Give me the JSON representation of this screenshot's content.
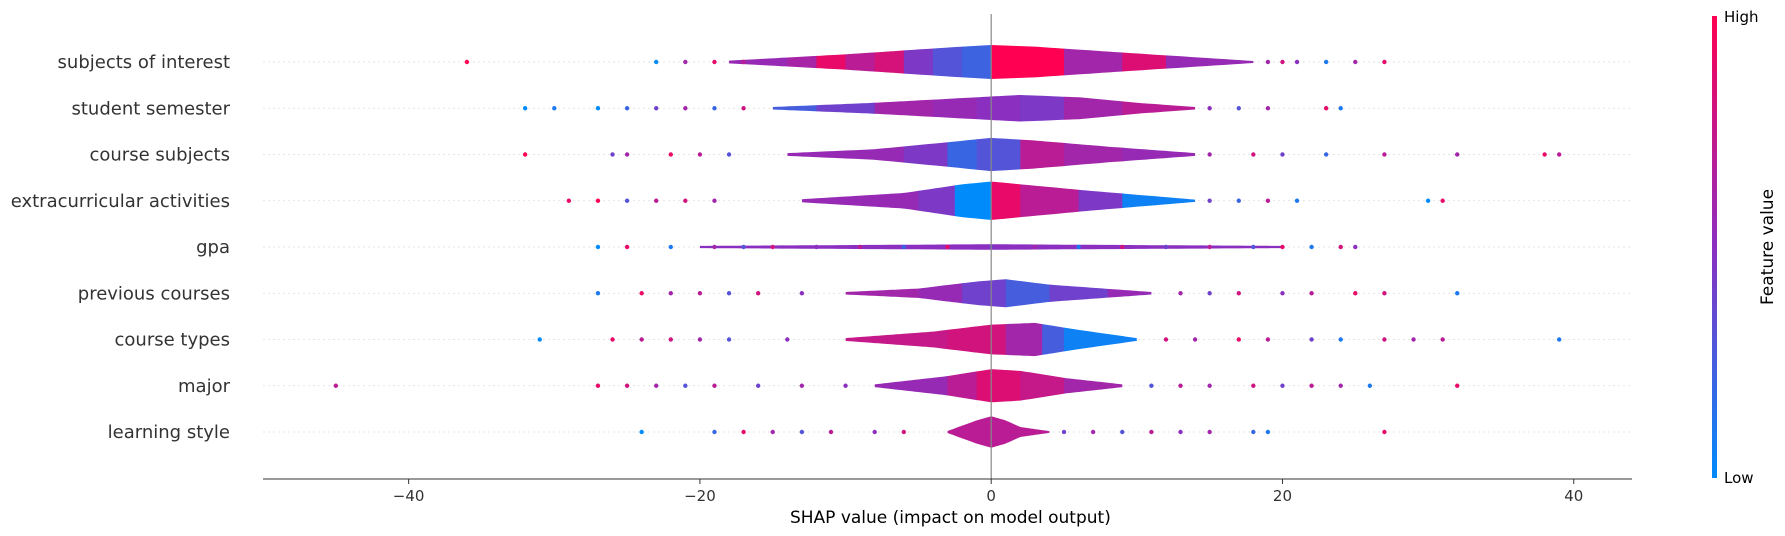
{
  "chart_data": {
    "type": "violin",
    "xlabel": "SHAP value (impact on model output)",
    "xlim": [
      -50,
      44
    ],
    "xticks": [
      -40,
      -20,
      0,
      20,
      40
    ],
    "xtick_labels": [
      "−40",
      "−20",
      "0",
      "20",
      "40"
    ],
    "colorbar": {
      "title": "Feature value",
      "high_label": "High",
      "low_label": "Low",
      "high_color": "#ff0052",
      "mid_color": "#8b2fc0",
      "low_color": "#008bfb"
    },
    "features": [
      {
        "name": "subjects of interest",
        "range": [
          -18,
          18
        ],
        "max_width": 0.37,
        "profile": [
          [
            -18,
            0.08
          ],
          [
            -10,
            0.45
          ],
          [
            -3,
            0.85
          ],
          [
            0,
            1
          ],
          [
            3,
            0.9
          ],
          [
            10,
            0.5
          ],
          [
            18,
            0.06
          ]
        ],
        "bands": [
          [
            -18,
            0.55
          ],
          [
            -14,
            0.62
          ],
          [
            -12,
            0.9
          ],
          [
            -10,
            0.7
          ],
          [
            -8,
            0.82
          ],
          [
            -6,
            0.45
          ],
          [
            -4,
            0.3
          ],
          [
            -2,
            0.22
          ],
          [
            0,
            1.0
          ],
          [
            5,
            0.6
          ],
          [
            9,
            0.85
          ],
          [
            12,
            0.55
          ]
        ],
        "points": [
          [
            -36,
            1
          ],
          [
            -23,
            0
          ],
          [
            -21,
            0.6
          ],
          [
            -19,
            0.9
          ],
          [
            -17,
            0.7
          ],
          [
            19,
            0.6
          ],
          [
            20,
            0.8
          ],
          [
            21,
            0.5
          ],
          [
            23,
            0.1
          ],
          [
            25,
            0.6
          ],
          [
            27,
            0.9
          ]
        ]
      },
      {
        "name": "student semester",
        "range": [
          -15,
          14
        ],
        "max_width": 0.34,
        "profile": [
          [
            -15,
            0.08
          ],
          [
            -8,
            0.35
          ],
          [
            -2,
            0.65
          ],
          [
            2,
            0.85
          ],
          [
            6,
            0.7
          ],
          [
            10,
            0.35
          ],
          [
            14,
            0.08
          ]
        ],
        "bands": [
          [
            -15,
            0.25
          ],
          [
            -12,
            0.4
          ],
          [
            -8,
            0.6
          ],
          [
            -4,
            0.55
          ],
          [
            -1,
            0.5
          ],
          [
            2,
            0.45
          ],
          [
            5,
            0.6
          ],
          [
            9,
            0.7
          ]
        ],
        "points": [
          [
            -32,
            0
          ],
          [
            -30,
            0.1
          ],
          [
            -27,
            0
          ],
          [
            -25,
            0.2
          ],
          [
            -23,
            0.4
          ],
          [
            -21,
            0.6
          ],
          [
            -19,
            0.2
          ],
          [
            -17,
            0.8
          ],
          [
            15,
            0.5
          ],
          [
            17,
            0.3
          ],
          [
            19,
            0.6
          ],
          [
            23,
            0.9
          ],
          [
            24,
            0.1
          ]
        ]
      },
      {
        "name": "course subjects",
        "range": [
          -14,
          14
        ],
        "max_width": 0.38,
        "profile": [
          [
            -14,
            0.08
          ],
          [
            -8,
            0.3
          ],
          [
            -3,
            0.7
          ],
          [
            0,
            0.95
          ],
          [
            3,
            0.8
          ],
          [
            8,
            0.45
          ],
          [
            14,
            0.08
          ]
        ],
        "bands": [
          [
            -14,
            0.55
          ],
          [
            -6,
            0.45
          ],
          [
            -3,
            0.2
          ],
          [
            -1,
            0.3
          ],
          [
            2,
            0.7
          ],
          [
            5,
            0.6
          ],
          [
            9,
            0.55
          ]
        ],
        "points": [
          [
            -32,
            1
          ],
          [
            -26,
            0.4
          ],
          [
            -25,
            0.6
          ],
          [
            -22,
            0.9
          ],
          [
            -20,
            0.7
          ],
          [
            -18,
            0.3
          ],
          [
            15,
            0.6
          ],
          [
            18,
            0.8
          ],
          [
            20,
            0.4
          ],
          [
            23,
            0.2
          ],
          [
            27,
            0.7
          ],
          [
            32,
            0.6
          ],
          [
            38,
            0.9
          ],
          [
            39,
            0.7
          ]
        ]
      },
      {
        "name": "extracurricular activities",
        "range": [
          -13,
          14
        ],
        "max_width": 0.42,
        "profile": [
          [
            -13,
            0.08
          ],
          [
            -6,
            0.4
          ],
          [
            -2,
            0.85
          ],
          [
            0,
            1
          ],
          [
            2,
            0.85
          ],
          [
            7,
            0.5
          ],
          [
            14,
            0.06
          ]
        ],
        "bands": [
          [
            -13,
            0.55
          ],
          [
            -5,
            0.45
          ],
          [
            -2.5,
            0.0
          ],
          [
            0,
            0.9
          ],
          [
            2,
            0.7
          ],
          [
            6,
            0.45
          ],
          [
            9,
            0.05
          ]
        ],
        "points": [
          [
            -29,
            0.9
          ],
          [
            -27,
            1
          ],
          [
            -25,
            0.3
          ],
          [
            -23,
            0.7
          ],
          [
            -21,
            0.8
          ],
          [
            -19,
            0.6
          ],
          [
            15,
            0.4
          ],
          [
            17,
            0.2
          ],
          [
            19,
            0.7
          ],
          [
            21,
            0.1
          ],
          [
            30,
            0.0
          ],
          [
            31,
            0.9
          ]
        ]
      },
      {
        "name": "gpa",
        "range": [
          -20,
          20
        ],
        "max_width": 0.06,
        "profile": [
          [
            -20,
            0.4
          ],
          [
            0,
            1
          ],
          [
            20,
            0.4
          ]
        ],
        "bands": [
          [
            -20,
            0.5
          ]
        ],
        "points": [
          [
            -27,
            0
          ],
          [
            -25,
            0.9
          ],
          [
            -22,
            0.1
          ],
          [
            -19,
            0.6
          ],
          [
            -17,
            0.3
          ],
          [
            -15,
            0.8
          ],
          [
            -12,
            0.5
          ],
          [
            -9,
            0.7
          ],
          [
            -6,
            0.2
          ],
          [
            -3,
            0.9
          ],
          [
            0,
            0.4
          ],
          [
            3,
            0.6
          ],
          [
            6,
            0.1
          ],
          [
            9,
            0.8
          ],
          [
            12,
            0.4
          ],
          [
            15,
            0.7
          ],
          [
            18,
            0.3
          ],
          [
            20,
            0.9
          ],
          [
            22,
            0.1
          ],
          [
            24,
            0.8
          ],
          [
            25,
            0.5
          ]
        ]
      },
      {
        "name": "previous courses",
        "range": [
          -10,
          11
        ],
        "max_width": 0.34,
        "profile": [
          [
            -10,
            0.08
          ],
          [
            -5,
            0.3
          ],
          [
            -1,
            0.75
          ],
          [
            1,
            0.9
          ],
          [
            4,
            0.55
          ],
          [
            11,
            0.08
          ]
        ],
        "bands": [
          [
            -10,
            0.6
          ],
          [
            -5,
            0.55
          ],
          [
            -2,
            0.4
          ],
          [
            1,
            0.25
          ],
          [
            4,
            0.4
          ],
          [
            8,
            0.55
          ]
        ],
        "points": [
          [
            -27,
            0.1
          ],
          [
            -24,
            0.9
          ],
          [
            -22,
            0.6
          ],
          [
            -20,
            0.7
          ],
          [
            -18,
            0.3
          ],
          [
            -16,
            0.8
          ],
          [
            -13,
            0.5
          ],
          [
            13,
            0.6
          ],
          [
            15,
            0.4
          ],
          [
            17,
            0.8
          ],
          [
            20,
            0.5
          ],
          [
            22,
            0.7
          ],
          [
            25,
            0.9
          ],
          [
            27,
            0.8
          ],
          [
            32,
            0.1
          ]
        ]
      },
      {
        "name": "course types",
        "range": [
          -10,
          10
        ],
        "max_width": 0.38,
        "profile": [
          [
            -10,
            0.08
          ],
          [
            -4,
            0.45
          ],
          [
            0,
            0.85
          ],
          [
            3,
            0.95
          ],
          [
            6,
            0.55
          ],
          [
            10,
            0.08
          ]
        ],
        "bands": [
          [
            -10,
            0.75
          ],
          [
            -3,
            0.8
          ],
          [
            1,
            0.6
          ],
          [
            3.5,
            0.25
          ],
          [
            5,
            0.05
          ]
        ],
        "points": [
          [
            -31,
            0.0
          ],
          [
            -26,
            0.9
          ],
          [
            -24,
            0.7
          ],
          [
            -22,
            0.8
          ],
          [
            -20,
            0.6
          ],
          [
            -18,
            0.3
          ],
          [
            -14,
            0.5
          ],
          [
            12,
            0.8
          ],
          [
            14,
            0.6
          ],
          [
            17,
            0.9
          ],
          [
            19,
            0.7
          ],
          [
            22,
            0.4
          ],
          [
            24,
            0.1
          ],
          [
            27,
            0.8
          ],
          [
            29,
            0.6
          ],
          [
            31,
            0.7
          ],
          [
            39,
            0.1
          ]
        ]
      },
      {
        "name": "major",
        "range": [
          -8,
          9
        ],
        "max_width": 0.38,
        "profile": [
          [
            -8,
            0.08
          ],
          [
            -3,
            0.55
          ],
          [
            0,
            0.95
          ],
          [
            2,
            0.85
          ],
          [
            5,
            0.45
          ],
          [
            9,
            0.08
          ]
        ],
        "bands": [
          [
            -8,
            0.55
          ],
          [
            -3,
            0.7
          ],
          [
            -1,
            0.85
          ],
          [
            2,
            0.75
          ],
          [
            5,
            0.6
          ]
        ],
        "points": [
          [
            -45,
            0.7
          ],
          [
            -27,
            0.9
          ],
          [
            -25,
            0.8
          ],
          [
            -23,
            0.6
          ],
          [
            -21,
            0.3
          ],
          [
            -19,
            0.7
          ],
          [
            -16,
            0.4
          ],
          [
            -13,
            0.6
          ],
          [
            -10,
            0.5
          ],
          [
            11,
            0.3
          ],
          [
            13,
            0.7
          ],
          [
            15,
            0.6
          ],
          [
            18,
            0.8
          ],
          [
            20,
            0.4
          ],
          [
            22,
            0.7
          ],
          [
            24,
            0.6
          ],
          [
            26,
            0.1
          ],
          [
            32,
            0.9
          ]
        ]
      },
      {
        "name": "learning style",
        "range": [
          -3,
          4
        ],
        "max_width": 0.36,
        "profile": [
          [
            -3,
            0.06
          ],
          [
            -1,
            0.7
          ],
          [
            0,
            0.95
          ],
          [
            1,
            0.7
          ],
          [
            2,
            0.3
          ],
          [
            4,
            0.05
          ]
        ],
        "bands": [
          [
            -3,
            0.7
          ]
        ],
        "points": [
          [
            -24,
            0.0
          ],
          [
            -19,
            0.2
          ],
          [
            -17,
            0.9
          ],
          [
            -15,
            0.6
          ],
          [
            -13,
            0.3
          ],
          [
            -11,
            0.7
          ],
          [
            -8,
            0.5
          ],
          [
            -6,
            0.8
          ],
          [
            5,
            0.4
          ],
          [
            7,
            0.6
          ],
          [
            9,
            0.3
          ],
          [
            11,
            0.7
          ],
          [
            13,
            0.5
          ],
          [
            15,
            0.6
          ],
          [
            18,
            0.2
          ],
          [
            19,
            0.1
          ],
          [
            27,
            0.9
          ]
        ]
      }
    ]
  }
}
